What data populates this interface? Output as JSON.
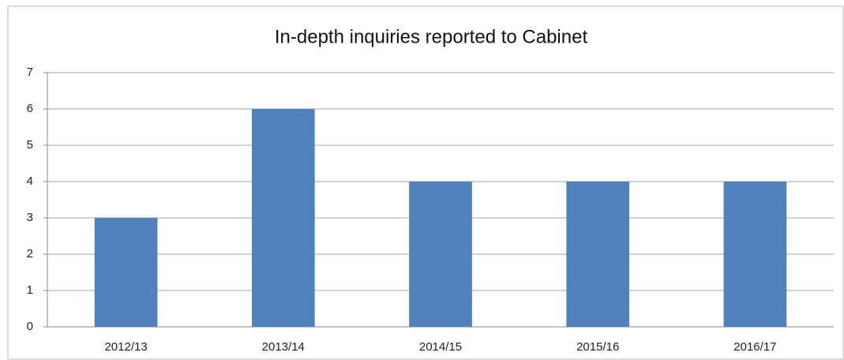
{
  "chart_data": {
    "type": "bar",
    "title": "In-depth inquiries reported to Cabinet",
    "categories": [
      "2012/13",
      "2013/14",
      "2014/15",
      "2015/16",
      "2016/17"
    ],
    "values": [
      3,
      6,
      4,
      4,
      4
    ],
    "color": "#4f81bd",
    "ylim": [
      0,
      7
    ],
    "yticks": [
      0,
      1,
      2,
      3,
      4,
      5,
      6,
      7
    ],
    "grid": true
  }
}
